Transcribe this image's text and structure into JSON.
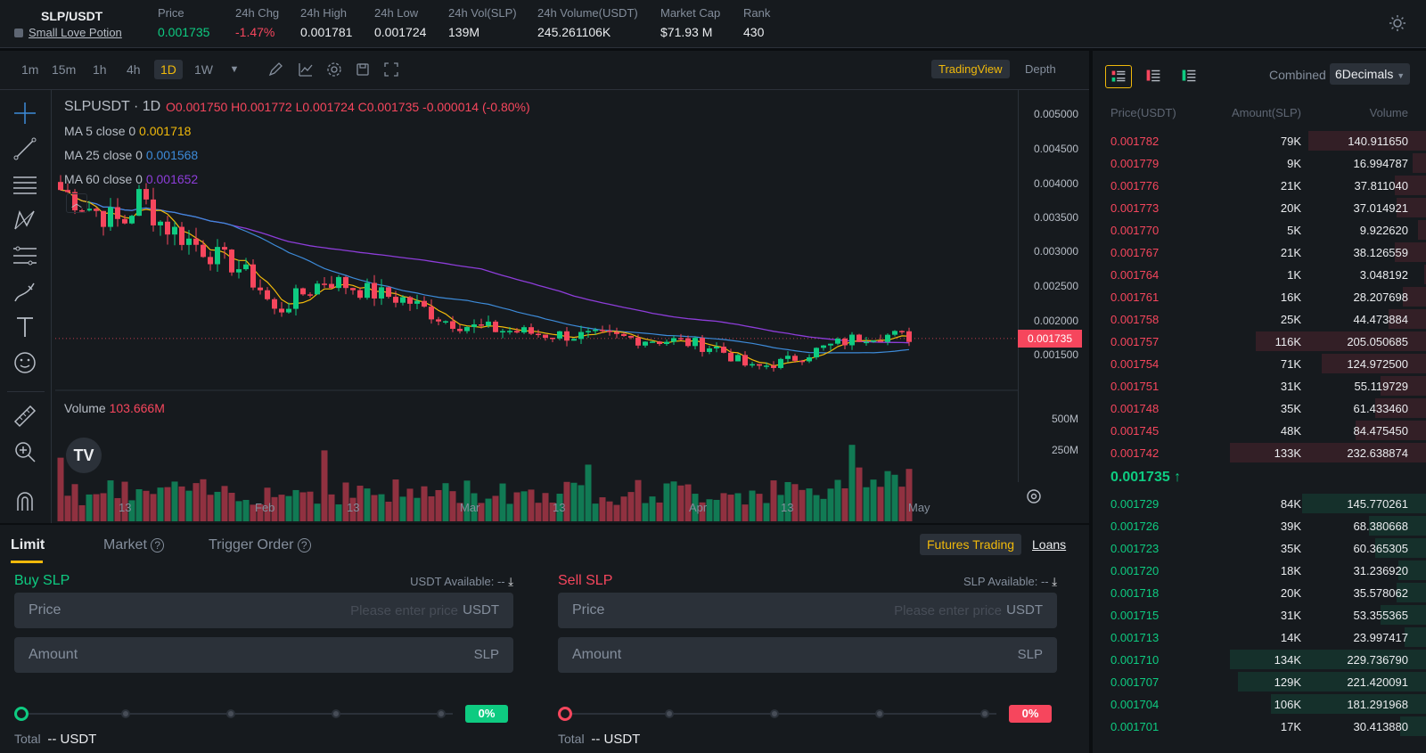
{
  "header": {
    "pair": "SLP/USDT",
    "pair_name": "Small Love Potion",
    "stats": [
      {
        "label": "Price",
        "value": "0.001735",
        "color": "#0ecb81"
      },
      {
        "label": "24h Chg",
        "value": "-1.47%",
        "color": "#f6465d"
      },
      {
        "label": "24h High",
        "value": "0.001781",
        "color": "#eaecef"
      },
      {
        "label": "24h Low",
        "value": "0.001724",
        "color": "#eaecef"
      },
      {
        "label": "24h Vol(SLP)",
        "value": "139M",
        "color": "#eaecef"
      },
      {
        "label": "24h Volume(USDT)",
        "value": "245.261106K",
        "color": "#eaecef"
      },
      {
        "label": "Market Cap",
        "value": "$71.93 M",
        "color": "#eaecef"
      },
      {
        "label": "Rank",
        "value": "430",
        "color": "#eaecef"
      }
    ]
  },
  "toolbar": {
    "timeframes": [
      "1m",
      "15m",
      "1h",
      "4h",
      "1D",
      "1W"
    ],
    "active_timeframe": "1D",
    "tradingview": "TradingView",
    "depth": "Depth"
  },
  "chart": {
    "symbol": "SLPUSDT · 1D",
    "ohlc": "O0.001750  H0.001772  L0.001724  C0.001735  -0.000014 (-0.80%)",
    "ma5_label": "MA 5 close 0",
    "ma5_value": "0.001718",
    "ma25_label": "MA 25 close 0",
    "ma25_value": "0.001568",
    "ma60_label": "MA 60 close 0",
    "ma60_value": "0.001652",
    "volume_label": "Volume",
    "volume_value": "103.666M",
    "price_ticks": [
      "0.005000",
      "0.004500",
      "0.004000",
      "0.003500",
      "0.003000",
      "0.002500",
      "0.002000",
      "0.001500"
    ],
    "current_price": "0.001735",
    "volume_ticks": [
      "500M",
      "250M"
    ],
    "x_labels": [
      "13",
      "Feb",
      "13",
      "Mar",
      "13",
      "Apr",
      "13",
      "May"
    ],
    "colors": {
      "up": "#0ecb81",
      "down": "#f6465d",
      "ma5": "#f0b90b",
      "ma25": "#3d8bd9",
      "ma60": "#8d3dd9"
    }
  },
  "order": {
    "tabs": [
      "Limit",
      "Market",
      "Trigger Order"
    ],
    "futures": "Futures Trading",
    "loans": "Loans",
    "buy": {
      "title": "Buy SLP",
      "available": "USDT Available: --",
      "price_label": "Price",
      "price_placeholder": "Please enter price",
      "price_unit": "USDT",
      "amount_label": "Amount",
      "amount_unit": "SLP",
      "percent": "0%",
      "total_label": "Total",
      "total_value": "-- USDT"
    },
    "sell": {
      "title": "Sell SLP",
      "available": "SLP Available: --",
      "price_label": "Price",
      "price_placeholder": "Please enter price",
      "price_unit": "USDT",
      "amount_label": "Amount",
      "amount_unit": "SLP",
      "percent": "0%",
      "total_label": "Total",
      "total_value": "-- USDT"
    }
  },
  "orderbook": {
    "combined": "Combined",
    "decimals": "6Decimals",
    "headers": [
      "Price(USDT)",
      "Amount(SLP)",
      "Volume"
    ],
    "asks": [
      {
        "price": "0.001782",
        "amount": "79K",
        "volume": "140.911650",
        "depth": 0.6
      },
      {
        "price": "0.001779",
        "amount": "9K",
        "volume": "16.994787",
        "depth": 0.07
      },
      {
        "price": "0.001776",
        "amount": "21K",
        "volume": "37.811040",
        "depth": 0.16
      },
      {
        "price": "0.001773",
        "amount": "20K",
        "volume": "37.014921",
        "depth": 0.15
      },
      {
        "price": "0.001770",
        "amount": "5K",
        "volume": "9.922620",
        "depth": 0.04
      },
      {
        "price": "0.001767",
        "amount": "21K",
        "volume": "38.126559",
        "depth": 0.16
      },
      {
        "price": "0.001764",
        "amount": "1K",
        "volume": "3.048192",
        "depth": 0.01
      },
      {
        "price": "0.001761",
        "amount": "16K",
        "volume": "28.207698",
        "depth": 0.12
      },
      {
        "price": "0.001758",
        "amount": "25K",
        "volume": "44.473884",
        "depth": 0.19
      },
      {
        "price": "0.001757",
        "amount": "116K",
        "volume": "205.050685",
        "depth": 0.87
      },
      {
        "price": "0.001754",
        "amount": "71K",
        "volume": "124.972500",
        "depth": 0.53
      },
      {
        "price": "0.001751",
        "amount": "31K",
        "volume": "55.119729",
        "depth": 0.23
      },
      {
        "price": "0.001748",
        "amount": "35K",
        "volume": "61.433460",
        "depth": 0.26
      },
      {
        "price": "0.001745",
        "amount": "48K",
        "volume": "84.475450",
        "depth": 0.36
      },
      {
        "price": "0.001742",
        "amount": "133K",
        "volume": "232.638874",
        "depth": 1.0
      }
    ],
    "last_price": "0.001735 ↑",
    "bids": [
      {
        "price": "0.001729",
        "amount": "84K",
        "volume": "145.770261",
        "depth": 0.63
      },
      {
        "price": "0.001726",
        "amount": "39K",
        "volume": "68.380668",
        "depth": 0.29
      },
      {
        "price": "0.001723",
        "amount": "35K",
        "volume": "60.365305",
        "depth": 0.26
      },
      {
        "price": "0.001720",
        "amount": "18K",
        "volume": "31.236920",
        "depth": 0.14
      },
      {
        "price": "0.001718",
        "amount": "20K",
        "volume": "35.578062",
        "depth": 0.15
      },
      {
        "price": "0.001715",
        "amount": "31K",
        "volume": "53.355365",
        "depth": 0.23
      },
      {
        "price": "0.001713",
        "amount": "14K",
        "volume": "23.997417",
        "depth": 0.11
      },
      {
        "price": "0.001710",
        "amount": "134K",
        "volume": "229.736790",
        "depth": 1.0
      },
      {
        "price": "0.001707",
        "amount": "129K",
        "volume": "221.420091",
        "depth": 0.96
      },
      {
        "price": "0.001704",
        "amount": "106K",
        "volume": "181.291968",
        "depth": 0.79
      },
      {
        "price": "0.001701",
        "amount": "17K",
        "volume": "30.413880",
        "depth": 0.13
      }
    ]
  }
}
